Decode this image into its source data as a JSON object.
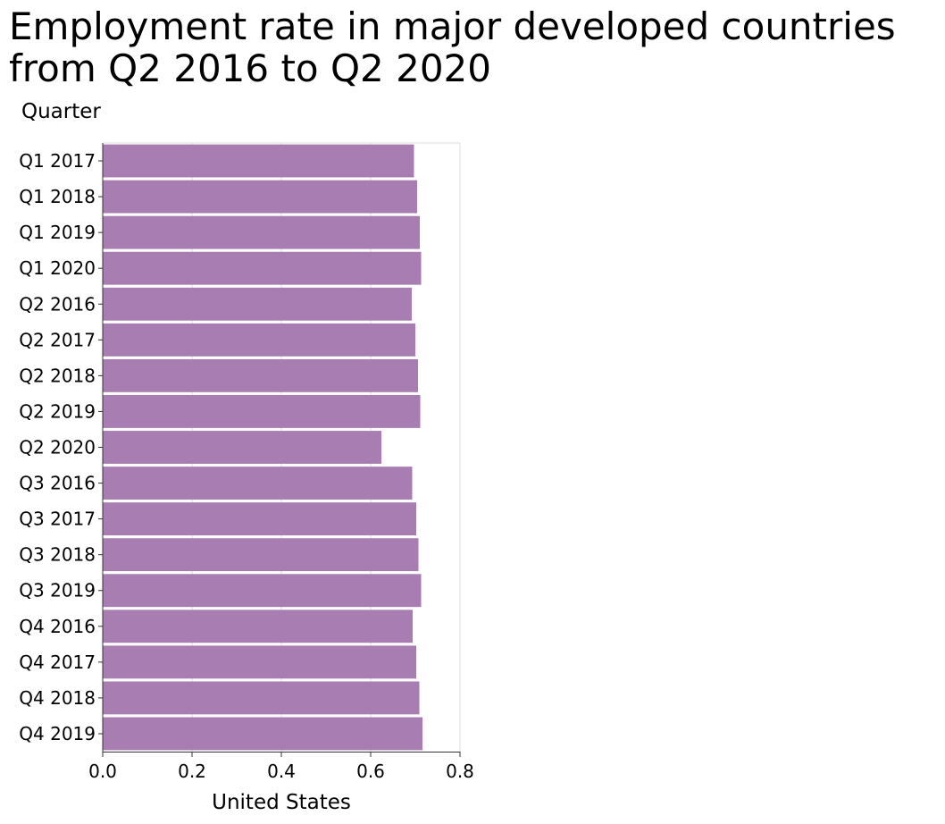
{
  "chart_data": {
    "type": "bar",
    "orientation": "horizontal",
    "title_lines": [
      "Employment rate in major developed countries",
      "from Q2 2016 to Q2 2020"
    ],
    "xlabel": "United States",
    "ylabel": "Quarter",
    "xlim": [
      0,
      0.8
    ],
    "xticks": [
      "0.0",
      "0.2",
      "0.4",
      "0.6",
      "0.8"
    ],
    "grid": "vertical",
    "colors": {
      "bar": "#a87db2"
    },
    "categories": [
      "Q1 2017",
      "Q1 2018",
      "Q1 2019",
      "Q1 2020",
      "Q2 2016",
      "Q2 2017",
      "Q2 2018",
      "Q2 2019",
      "Q2 2020",
      "Q3 2016",
      "Q3 2017",
      "Q3 2018",
      "Q3 2019",
      "Q4 2016",
      "Q4 2017",
      "Q4 2018",
      "Q4 2019"
    ],
    "series": [
      {
        "values": [
          0.697,
          0.704,
          0.71,
          0.713,
          0.692,
          0.7,
          0.706,
          0.711,
          0.624,
          0.693,
          0.702,
          0.707,
          0.713,
          0.694,
          0.702,
          0.709,
          0.716
        ]
      }
    ]
  }
}
